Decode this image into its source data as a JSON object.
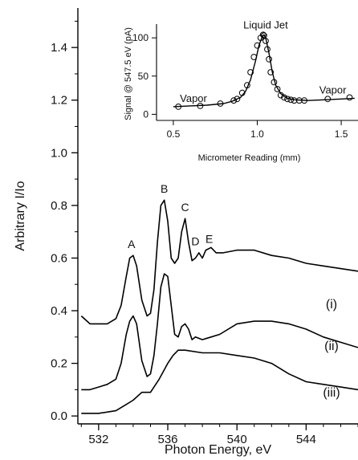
{
  "chart_data": [
    {
      "type": "line",
      "xlabel": "Photon Energy, eV",
      "ylabel": "Arbitrary I/Io",
      "xlim": [
        530.8,
        547
      ],
      "ylim": [
        -0.03,
        1.55
      ],
      "x_ticks": [
        532,
        536,
        540,
        544
      ],
      "y_ticks": [
        0.0,
        0.2,
        0.4,
        0.6,
        0.8,
        1.0,
        1.2,
        1.4
      ],
      "y_tick_labels": [
        "0.0",
        "0.2",
        "0.4",
        "0.6",
        "0.8",
        "1.0",
        "1.2",
        "1.4"
      ],
      "grid": false,
      "series": [
        {
          "name": "(i)",
          "x": [
            531.0,
            531.5,
            532.0,
            532.5,
            533.0,
            533.3,
            533.6,
            533.8,
            534.0,
            534.2,
            534.5,
            534.8,
            535.0,
            535.2,
            535.4,
            535.6,
            535.8,
            536.0,
            536.2,
            536.4,
            536.6,
            536.8,
            537.0,
            537.2,
            537.4,
            537.6,
            537.8,
            538.0,
            538.2,
            538.5,
            538.8,
            539.2,
            540.0,
            541.0,
            542.0,
            543.0,
            544.0,
            545.0,
            546.0,
            547.0
          ],
          "y": [
            0.38,
            0.35,
            0.35,
            0.35,
            0.37,
            0.42,
            0.53,
            0.6,
            0.61,
            0.57,
            0.44,
            0.38,
            0.39,
            0.48,
            0.66,
            0.8,
            0.82,
            0.74,
            0.6,
            0.58,
            0.6,
            0.7,
            0.75,
            0.66,
            0.59,
            0.6,
            0.62,
            0.6,
            0.63,
            0.64,
            0.62,
            0.62,
            0.63,
            0.63,
            0.61,
            0.6,
            0.58,
            0.57,
            0.56,
            0.55
          ],
          "label": "(i)"
        },
        {
          "name": "(ii)",
          "x": [
            531.0,
            531.5,
            532.0,
            532.5,
            533.0,
            533.3,
            533.6,
            533.8,
            534.0,
            534.2,
            534.5,
            534.8,
            535.0,
            535.2,
            535.4,
            535.6,
            535.8,
            536.0,
            536.2,
            536.4,
            536.6,
            536.8,
            537.0,
            537.2,
            537.4,
            537.6,
            538.0,
            538.5,
            539.0,
            540.0,
            541.0,
            542.0,
            543.0,
            544.0,
            545.0,
            546.0,
            547.0
          ],
          "y": [
            0.1,
            0.1,
            0.11,
            0.12,
            0.14,
            0.2,
            0.31,
            0.36,
            0.38,
            0.35,
            0.21,
            0.15,
            0.16,
            0.23,
            0.35,
            0.49,
            0.54,
            0.53,
            0.42,
            0.31,
            0.3,
            0.34,
            0.35,
            0.33,
            0.29,
            0.3,
            0.29,
            0.3,
            0.31,
            0.35,
            0.36,
            0.36,
            0.35,
            0.33,
            0.3,
            0.28,
            0.26
          ],
          "label": "(ii)"
        },
        {
          "name": "(iii)",
          "x": [
            531.0,
            532.0,
            533.0,
            533.5,
            534.0,
            534.5,
            535.0,
            535.5,
            536.0,
            536.3,
            536.6,
            537.0,
            538.0,
            539.0,
            540.0,
            541.0,
            542.0,
            543.0,
            544.0,
            545.0,
            546.0,
            547.0
          ],
          "y": [
            0.01,
            0.01,
            0.02,
            0.04,
            0.06,
            0.09,
            0.09,
            0.14,
            0.2,
            0.23,
            0.25,
            0.25,
            0.24,
            0.24,
            0.23,
            0.22,
            0.2,
            0.16,
            0.13,
            0.12,
            0.11,
            0.1
          ],
          "label": "(iii)"
        }
      ],
      "annotations": [
        {
          "text": "A",
          "x": 533.9,
          "y": 0.62
        },
        {
          "text": "B",
          "x": 535.8,
          "y": 0.83
        },
        {
          "text": "C",
          "x": 537.0,
          "y": 0.76
        },
        {
          "text": "D",
          "x": 537.6,
          "y": 0.63
        },
        {
          "text": "E",
          "x": 538.4,
          "y": 0.64
        }
      ]
    },
    {
      "type": "scatter",
      "xlabel": "Micrometer Reading (mm)",
      "ylabel": "Signal @ 547.5 eV (pA)",
      "xlim": [
        0.4,
        1.6
      ],
      "ylim": [
        -8,
        118
      ],
      "x_ticks": [
        0.5,
        1.0,
        1.5
      ],
      "x_tick_labels": [
        "0.5",
        "1.0",
        "1.5"
      ],
      "y_ticks": [
        0,
        50,
        100
      ],
      "y_tick_labels": [
        "0",
        "50",
        "100"
      ],
      "grid": false,
      "points": {
        "x": [
          0.53,
          0.66,
          0.78,
          0.86,
          0.88,
          0.91,
          0.94,
          0.96,
          0.98,
          1.0,
          1.02,
          1.035,
          1.04,
          1.05,
          1.06,
          1.07,
          1.08,
          1.1,
          1.12,
          1.14,
          1.16,
          1.18,
          1.2,
          1.22,
          1.25,
          1.28,
          1.42,
          1.55
        ],
        "y": [
          10,
          11,
          14,
          18,
          20,
          28,
          38,
          55,
          75,
          90,
          100,
          104,
          103,
          96,
          85,
          72,
          55,
          42,
          33,
          25,
          22,
          20,
          19,
          18,
          18,
          18,
          20,
          22
        ]
      },
      "fit": {
        "x": [
          0.5,
          0.6,
          0.7,
          0.8,
          0.85,
          0.9,
          0.93,
          0.96,
          0.99,
          1.01,
          1.03,
          1.04,
          1.05,
          1.07,
          1.09,
          1.11,
          1.14,
          1.18,
          1.22,
          1.3,
          1.4,
          1.5,
          1.58
        ],
        "y": [
          10,
          11,
          12,
          14,
          17,
          22,
          30,
          45,
          70,
          90,
          102,
          104,
          100,
          80,
          55,
          38,
          27,
          21,
          19,
          18,
          19,
          20,
          21
        ]
      },
      "annotations": [
        {
          "text": "Liquid Jet",
          "x": 1.05,
          "y": 112
        },
        {
          "text": "Vapor",
          "x": 0.62,
          "y": 16
        },
        {
          "text": "Vapor",
          "x": 1.45,
          "y": 27
        }
      ]
    }
  ]
}
